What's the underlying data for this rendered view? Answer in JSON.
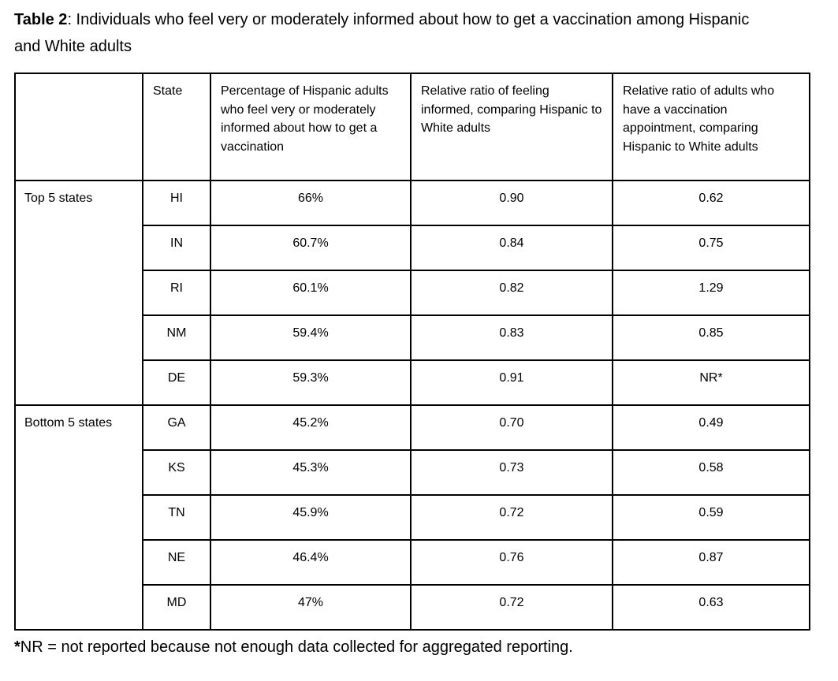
{
  "title": {
    "label": "Table 2",
    "rest": ": Individuals who feel very or moderately informed about how to get a vaccination among Hispanic and White adults"
  },
  "table": {
    "headers": [
      "",
      "State",
      "Percentage of Hispanic adults who feel very or moderately informed about how to get a vaccination",
      "Relative ratio of feeling informed, comparing Hispanic to White adults",
      "Relative ratio of adults who have a vaccination appointment, comparing Hispanic to White adults"
    ],
    "groups": [
      {
        "label": "Top 5 states",
        "rows": [
          [
            "HI",
            "66%",
            "0.90",
            "0.62"
          ],
          [
            "IN",
            "60.7%",
            "0.84",
            "0.75"
          ],
          [
            "RI",
            "60.1%",
            "0.82",
            "1.29"
          ],
          [
            "NM",
            "59.4%",
            "0.83",
            "0.85"
          ],
          [
            "DE",
            "59.3%",
            "0.91",
            "NR*"
          ]
        ]
      },
      {
        "label": "Bottom 5 states",
        "rows": [
          [
            "GA",
            "45.2%",
            "0.70",
            "0.49"
          ],
          [
            "KS",
            "45.3%",
            "0.73",
            "0.58"
          ],
          [
            "TN",
            "45.9%",
            "0.72",
            "0.59"
          ],
          [
            "NE",
            "46.4%",
            "0.76",
            "0.87"
          ],
          [
            "MD",
            "47%",
            "0.72",
            "0.63"
          ]
        ]
      }
    ]
  },
  "footnote": {
    "marker": "*",
    "text": "NR = not reported because not enough data collected for aggregated reporting."
  },
  "colors": {
    "text": "#000000",
    "border": "#000000",
    "background": "#ffffff"
  }
}
